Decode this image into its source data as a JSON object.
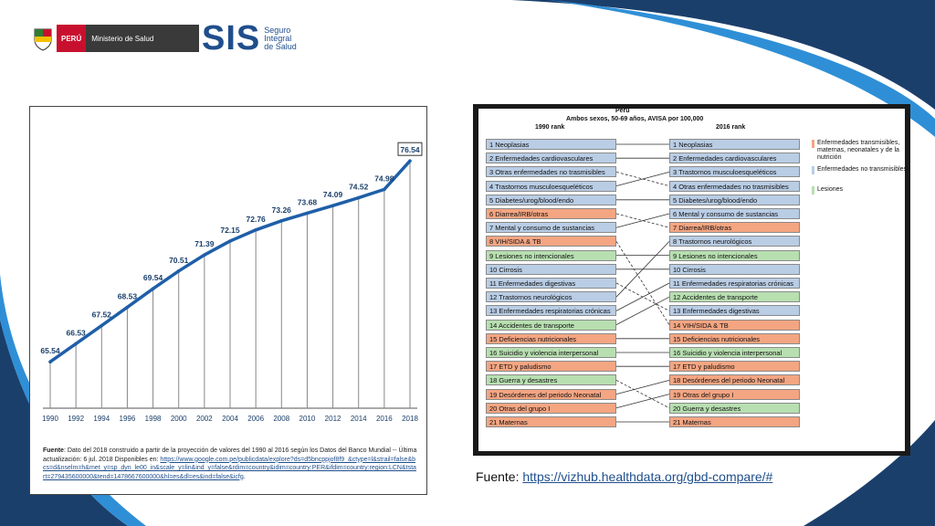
{
  "header": {
    "peru_label": "PERÚ",
    "ministry_label": "Ministerio de Salud",
    "sis_logo": "SIS",
    "sis_sub1": "Seguro",
    "sis_sub2": "Integral",
    "sis_sub3": "de Salud"
  },
  "colors": {
    "line": "#1f5fa8",
    "group1": "#f4a582",
    "group2": "#b9cde5",
    "group3": "#b7dfb0",
    "accent_dark": "#1b3f6b"
  },
  "chart_data": [
    {
      "type": "line",
      "x": [
        1990,
        1992,
        1994,
        1996,
        1998,
        2000,
        2002,
        2004,
        2006,
        2008,
        2010,
        2012,
        2014,
        2016,
        2018
      ],
      "values": [
        65.54,
        66.53,
        67.52,
        68.53,
        69.54,
        70.51,
        71.39,
        72.15,
        72.76,
        73.26,
        73.68,
        74.09,
        74.52,
        74.98,
        76.54
      ],
      "labels": [
        "65.54",
        "66.53",
        "67.52",
        "68.53",
        "69.54",
        "70.51",
        "71.39",
        "72.15",
        "72.76",
        "73.26",
        "73.68",
        "74.09",
        "74.52",
        "74.98",
        "76.54"
      ],
      "tick_labels": [
        "1990",
        "1992",
        "1994",
        "1996",
        "1998",
        "2000",
        "2002",
        "2004",
        "2006",
        "2008",
        "2010",
        "2012",
        "2014",
        "2016",
        "2018"
      ],
      "ylim": [
        63,
        78
      ]
    },
    {
      "type": "table",
      "title_line1": "Perú",
      "title_line2": "Ambos sexos, 50-69 años, AVISA por 100,000",
      "left_header": "1990 rank",
      "right_header": "2016 rank",
      "rank_1990": [
        {
          "label": "1 Neoplasias",
          "group": 2
        },
        {
          "label": "2 Enfermedades cardiovasculares",
          "group": 2
        },
        {
          "label": "3 Otras enfermedades no trasmisibles",
          "group": 2
        },
        {
          "label": "4 Trastornos musculoesqueléticos",
          "group": 2
        },
        {
          "label": "5 Diabetes/urog/blood/endo",
          "group": 2
        },
        {
          "label": "6 Diarrea/IRB/otras",
          "group": 1
        },
        {
          "label": "7 Mental y consumo de sustancias",
          "group": 2
        },
        {
          "label": "8 VIH/SIDA & TB",
          "group": 1
        },
        {
          "label": "9 Lesiones no intencionales",
          "group": 3
        },
        {
          "label": "10 Cirrosis",
          "group": 2
        },
        {
          "label": "11 Enfermedades digestivas",
          "group": 2
        },
        {
          "label": "12 Trastornos neurológicos",
          "group": 2
        },
        {
          "label": "13 Enfermedades respiratorias crónicas",
          "group": 2
        },
        {
          "label": "14 Accidentes de transporte",
          "group": 3
        },
        {
          "label": "15 Deficiencias nutricionales",
          "group": 1
        },
        {
          "label": "16 Suicidio y violencia interpersonal",
          "group": 3
        },
        {
          "label": "17 ETD y paludismo",
          "group": 1
        },
        {
          "label": "18 Guerra y desastres",
          "group": 3
        },
        {
          "label": "19 Desórdenes del periodo Neonatal",
          "group": 1
        },
        {
          "label": "20 Otras del grupo I",
          "group": 1
        },
        {
          "label": "21 Maternas",
          "group": 1
        }
      ],
      "rank_2016": [
        {
          "label": "1 Neoplasias",
          "group": 2
        },
        {
          "label": "2 Enfermedades cardiovasculares",
          "group": 2
        },
        {
          "label": "3 Trastornos musculoesqueléticos",
          "group": 2
        },
        {
          "label": "4 Otras enfermedades no trasmisibles",
          "group": 2
        },
        {
          "label": "5 Diabetes/urog/blood/endo",
          "group": 2
        },
        {
          "label": "6 Mental y consumo de sustancias",
          "group": 2
        },
        {
          "label": "7 Diarrea/IRB/otras",
          "group": 1
        },
        {
          "label": "8 Trastornos neurológicos",
          "group": 2
        },
        {
          "label": "9 Lesiones no intencionales",
          "group": 3
        },
        {
          "label": "10 Cirrosis",
          "group": 2
        },
        {
          "label": "11 Enfermedades respiratorias crónicas",
          "group": 2
        },
        {
          "label": "12 Accidentes de transporte",
          "group": 3
        },
        {
          "label": "13 Enfermedades digestivas",
          "group": 2
        },
        {
          "label": "14 VIH/SIDA & TB",
          "group": 1
        },
        {
          "label": "15 Deficiencias nutricionales",
          "group": 1
        },
        {
          "label": "16 Suicidio y violencia interpersonal",
          "group": 3
        },
        {
          "label": "17 ETD y paludismo",
          "group": 1
        },
        {
          "label": "18 Desórdenes del periodo Neonatal",
          "group": 1
        },
        {
          "label": "19 Otras del grupo I",
          "group": 1
        },
        {
          "label": "20 Guerra y desastres",
          "group": 3
        },
        {
          "label": "21 Maternas",
          "group": 1
        }
      ],
      "links": [
        [
          1,
          1
        ],
        [
          2,
          2
        ],
        [
          3,
          4
        ],
        [
          4,
          3
        ],
        [
          5,
          5
        ],
        [
          6,
          7
        ],
        [
          7,
          6
        ],
        [
          8,
          14
        ],
        [
          9,
          9
        ],
        [
          10,
          10
        ],
        [
          11,
          13
        ],
        [
          12,
          8
        ],
        [
          13,
          11
        ],
        [
          14,
          12
        ],
        [
          15,
          15
        ],
        [
          16,
          16
        ],
        [
          17,
          17
        ],
        [
          18,
          20
        ],
        [
          19,
          18
        ],
        [
          20,
          19
        ],
        [
          21,
          21
        ]
      ],
      "legend": [
        {
          "label": "Enfermedades transmisibles, maternas, neonatales y de la nutrición",
          "group": 1
        },
        {
          "label": "Enfermedades no transmisibles",
          "group": 2
        },
        {
          "label": "Lesiones",
          "group": 3
        }
      ]
    }
  ],
  "source_left": {
    "prefix": "Fuente",
    "text": ": Dato del 2018 construido a partir de la proyección de valores del 1990 al 2016 según los Datos del Banco Mundial -- Última actualización: 6 jul. 2018 Disponibles en:",
    "link": "https://www.google.com.pe/publicdata/explore?ds=d5bncppjof8f9_&ctype=l&strail=false&bcs=d&nselm=h&met_y=sp_dyn_le00_in&scale_y=lin&ind_y=false&rdim=country&idim=country:PER&ifdim=country:region:LCN&tstart=279435600000&tend=1478667600000&hl=es&dl=es&ind=false&icfg",
    "suffix": "."
  },
  "source_right": {
    "prefix": "Fuente: ",
    "link": "https://vizhub.healthdata.org/gbd-compare/#"
  }
}
